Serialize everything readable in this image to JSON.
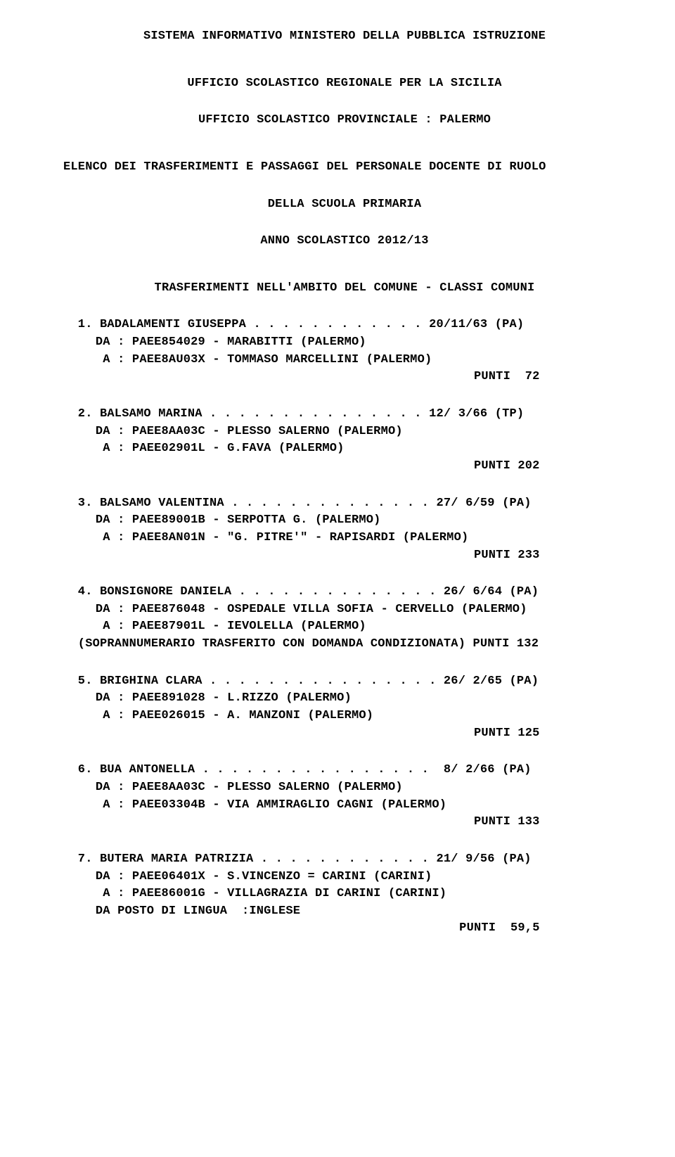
{
  "header": {
    "line1": "SISTEMA INFORMATIVO MINISTERO DELLA PUBBLICA ISTRUZIONE",
    "line2": "UFFICIO SCOLASTICO REGIONALE PER LA SICILIA",
    "line3": "UFFICIO SCOLASTICO PROVINCIALE : PALERMO",
    "line4": "ELENCO DEI TRASFERIMENTI E PASSAGGI DEL PERSONALE DOCENTE DI RUOLO",
    "line5": "DELLA SCUOLA PRIMARIA",
    "line6": "ANNO SCOLASTICO 2012/13",
    "section": "TRASFERIMENTI NELL'AMBITO DEL COMUNE - CLASSI COMUNI"
  },
  "entries": [
    {
      "num": "1.",
      "name": "BADALAMENTI GIUSEPPA",
      "dots": ". . . . . . . . . . . .",
      "date": "20/11/63 (PA)",
      "da": "DA : PAEE854029 - MARABITTI (PALERMO)",
      "a": "A : PAEE8AU03X - TOMMASO MARCELLINI (PALERMO)",
      "punti": "PUNTI  72"
    },
    {
      "num": "2.",
      "name": "BALSAMO MARINA",
      "dots": ". . . . . . . . . . . . . . .",
      "date": "12/ 3/66 (TP)",
      "da": "DA : PAEE8AA03C - PLESSO SALERNO (PALERMO)",
      "a": "A : PAEE02901L - G.FAVA (PALERMO)",
      "punti": "PUNTI 202"
    },
    {
      "num": "3.",
      "name": "BALSAMO VALENTINA",
      "dots": ". . . . . . . . . . . . . .",
      "date": "27/ 6/59 (PA)",
      "da": "DA : PAEE89001B - SERPOTTA G. (PALERMO)",
      "a": "A : PAEE8AN01N - \"G. PITRE'\" - RAPISARDI (PALERMO)",
      "punti": "PUNTI 233"
    },
    {
      "num": "4.",
      "name": "BONSIGNORE DANIELA",
      "dots": ". . . . . . . . . . . . . .",
      "date": "26/ 6/64 (PA)",
      "da": "DA : PAEE876048 - OSPEDALE VILLA SOFIA - CERVELLO (PALERMO)",
      "a": "A : PAEE87901L - IEVOLELLA (PALERMO)",
      "note": "(SOPRANNUMERARIO TRASFERITO CON DOMANDA CONDIZIONATA) PUNTI 132"
    },
    {
      "num": "5.",
      "name": "BRIGHINA CLARA",
      "dots": ". . . . . . . . . . . . . . . .",
      "date": "26/ 2/65 (PA)",
      "da": "DA : PAEE891028 - L.RIZZO (PALERMO)",
      "a": "A : PAEE026015 - A. MANZONI (PALERMO)",
      "punti": "PUNTI 125"
    },
    {
      "num": "6.",
      "name": "BUA ANTONELLA",
      "dots": ". . . . . . . . . . . . . . . .",
      "date": " 8/ 2/66 (PA)",
      "da": "DA : PAEE8AA03C - PLESSO SALERNO (PALERMO)",
      "a": "A : PAEE03304B - VIA AMMIRAGLIO CAGNI (PALERMO)",
      "punti": "PUNTI 133"
    },
    {
      "num": "7.",
      "name": "BUTERA MARIA PATRIZIA",
      "dots": ". . . . . . . . . . . .",
      "date": "21/ 9/56 (PA)",
      "da": "DA : PAEE06401X - S.VINCENZO = CARINI (CARINI)",
      "a": "A : PAEE86001G - VILLAGRAZIA DI CARINI (CARINI)",
      "extra": "DA POSTO DI LINGUA  :INGLESE",
      "punti": "PUNTI  59,5"
    }
  ]
}
